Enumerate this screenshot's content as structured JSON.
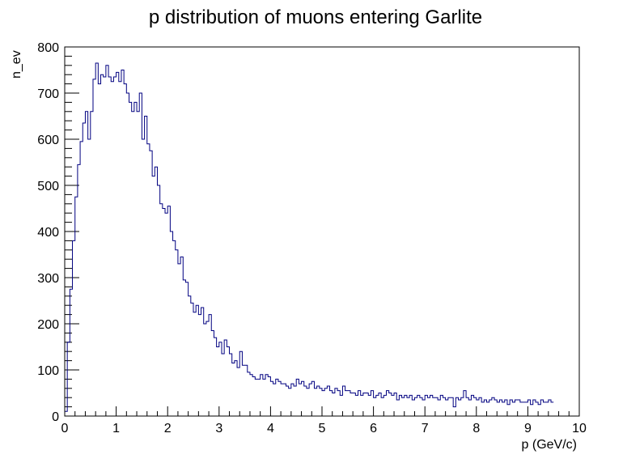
{
  "chart_data": {
    "type": "histogram",
    "title": "p distribution of muons entering Garlite",
    "xlabel": "p (GeV/c)",
    "ylabel": "n_ev",
    "xlim": [
      0,
      10
    ],
    "ylim": [
      0,
      800
    ],
    "x_ticks": [
      "0",
      "1",
      "2",
      "3",
      "4",
      "5",
      "6",
      "7",
      "8",
      "9",
      "10"
    ],
    "y_ticks": [
      "0",
      "100",
      "200",
      "300",
      "400",
      "500",
      "600",
      "700",
      "800"
    ],
    "bin_width": 0.05,
    "line_color": "#000080",
    "frame_color": "#000000",
    "values": [
      10,
      160,
      275,
      380,
      475,
      545,
      595,
      635,
      660,
      600,
      660,
      730,
      765,
      720,
      740,
      735,
      760,
      735,
      725,
      735,
      745,
      725,
      750,
      720,
      700,
      680,
      660,
      680,
      660,
      700,
      600,
      650,
      590,
      575,
      520,
      540,
      500,
      460,
      450,
      440,
      455,
      400,
      380,
      360,
      330,
      345,
      295,
      290,
      260,
      245,
      225,
      240,
      220,
      235,
      200,
      205,
      220,
      185,
      170,
      150,
      160,
      135,
      165,
      150,
      135,
      115,
      120,
      105,
      140,
      110,
      110,
      95,
      90,
      85,
      80,
      80,
      90,
      80,
      90,
      85,
      75,
      70,
      80,
      75,
      70,
      70,
      65,
      60,
      70,
      65,
      80,
      70,
      75,
      65,
      60,
      70,
      75,
      60,
      65,
      60,
      55,
      60,
      65,
      55,
      50,
      60,
      55,
      45,
      65,
      55,
      55,
      50,
      50,
      45,
      55,
      45,
      50,
      50,
      45,
      55,
      40,
      45,
      50,
      40,
      45,
      55,
      50,
      45,
      50,
      35,
      45,
      40,
      45,
      40,
      45,
      35,
      40,
      45,
      40,
      35,
      45,
      40,
      45,
      40,
      40,
      35,
      45,
      40,
      35,
      40,
      40,
      20,
      40,
      35,
      40,
      55,
      40,
      35,
      45,
      40,
      35,
      40,
      30,
      35,
      30,
      35,
      40,
      35,
      30,
      35,
      30,
      35,
      25,
      35,
      30,
      35,
      35,
      30,
      30,
      30,
      35,
      25,
      35,
      30,
      25,
      35,
      30,
      30,
      35,
      30
    ]
  }
}
